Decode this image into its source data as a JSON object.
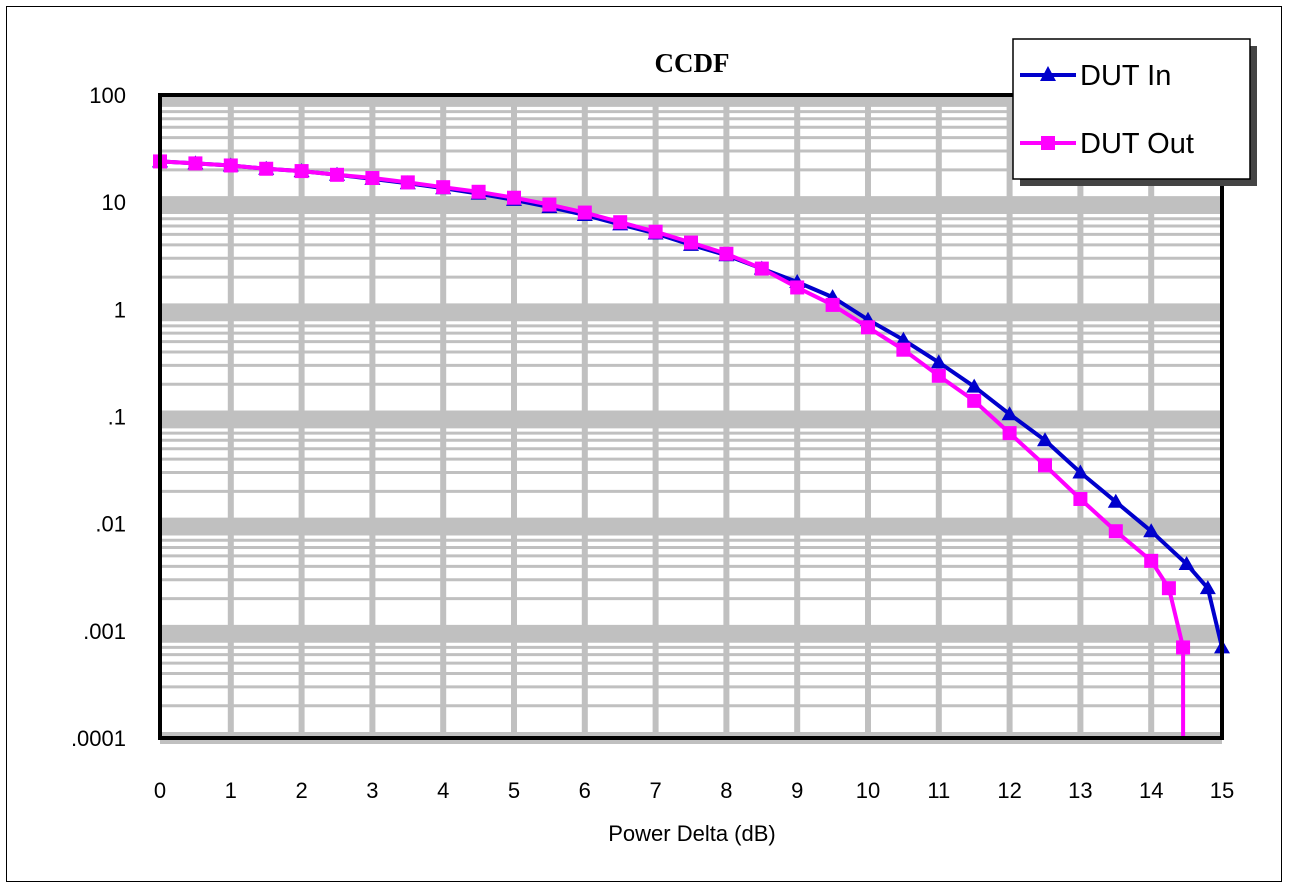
{
  "chart_data": {
    "type": "line",
    "title": "CCDF",
    "xlabel": "Power Delta (dB)",
    "ylabel": "",
    "x_scale": "linear",
    "y_scale": "log",
    "xlim": [
      0,
      15
    ],
    "ylim": [
      0.0001,
      100
    ],
    "x_ticks": [
      0,
      1,
      2,
      3,
      4,
      5,
      6,
      7,
      8,
      9,
      10,
      11,
      12,
      13,
      14,
      15
    ],
    "x_tick_labels": [
      "0",
      "1",
      "2",
      "3",
      "4",
      "5",
      "6",
      "7",
      "8",
      "9",
      "10",
      "11",
      "12",
      "13",
      "14",
      "15"
    ],
    "y_ticks": [
      0.0001,
      0.001,
      0.01,
      0.1,
      1,
      10,
      100
    ],
    "y_tick_labels": [
      ".0001",
      ".001",
      ".01",
      ".1",
      "1",
      "10",
      "100"
    ],
    "grid": true,
    "grid_color": "#c0c0c0",
    "legend_position": "top-right",
    "series": [
      {
        "name": "DUT In",
        "color": "#0000cc",
        "marker": "triangle",
        "x": [
          0,
          0.5,
          1,
          1.5,
          2,
          2.5,
          3,
          3.5,
          4,
          4.5,
          5,
          5.5,
          6,
          6.5,
          7,
          7.5,
          8,
          8.5,
          9,
          9.5,
          10,
          10.5,
          11,
          11.5,
          12,
          12.5,
          13,
          13.5,
          14,
          14.5,
          14.8,
          15,
          15
        ],
        "y": [
          24,
          23,
          22,
          20.5,
          19.5,
          18,
          16.5,
          15,
          13.5,
          12,
          10.5,
          9,
          7.6,
          6.2,
          5.1,
          4,
          3.2,
          2.4,
          1.8,
          1.3,
          0.8,
          0.52,
          0.32,
          0.19,
          0.105,
          0.06,
          0.03,
          0.016,
          0.0085,
          0.0042,
          0.0025,
          0.0007,
          0.0001
        ]
      },
      {
        "name": "DUT Out",
        "color": "#ff00ff",
        "marker": "square",
        "x": [
          0,
          0.5,
          1,
          1.5,
          2,
          2.5,
          3,
          3.5,
          4,
          4.5,
          5,
          5.5,
          6,
          6.5,
          7,
          7.5,
          8,
          8.5,
          9,
          9.5,
          10,
          10.5,
          11,
          11.5,
          12,
          12.5,
          13,
          13.5,
          14,
          14.25,
          14.45,
          14.45
        ],
        "y": [
          24,
          23,
          22,
          20.5,
          19.5,
          18,
          16.8,
          15.3,
          13.8,
          12.5,
          11,
          9.5,
          8,
          6.5,
          5.3,
          4.2,
          3.3,
          2.4,
          1.6,
          1.1,
          0.68,
          0.42,
          0.24,
          0.14,
          0.07,
          0.035,
          0.017,
          0.0085,
          0.0045,
          0.0025,
          0.0007,
          0.0001
        ]
      }
    ]
  }
}
